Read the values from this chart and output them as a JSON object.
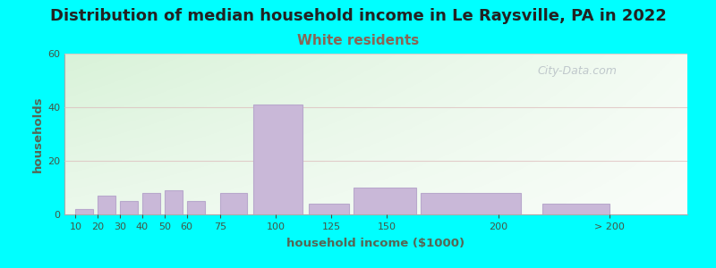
{
  "title": "Distribution of median household income in Le Raysville, PA in 2022",
  "subtitle": "White residents",
  "xlabel": "household income ($1000)",
  "ylabel": "households",
  "background_color": "#00FFFF",
  "bar_color": "#c9b8d8",
  "bar_edge_color": "#b8a8cc",
  "title_fontsize": 13,
  "subtitle_fontsize": 11,
  "subtitle_color": "#886655",
  "axis_label_color": "#556655",
  "tick_label_color": "#445544",
  "categories": [
    "10",
    "20",
    "30",
    "40",
    "50",
    "60",
    "75",
    "100",
    "125",
    "150",
    "200",
    "> 200"
  ],
  "values": [
    2,
    7,
    5,
    8,
    9,
    5,
    8,
    41,
    4,
    10,
    8,
    4
  ],
  "bar_left_edges": [
    10,
    20,
    30,
    40,
    50,
    60,
    75,
    90,
    115,
    135,
    165,
    220
  ],
  "bar_widths": [
    8,
    8,
    8,
    8,
    8,
    8,
    12,
    22,
    18,
    28,
    45,
    30
  ],
  "tick_positions": [
    10,
    20,
    30,
    40,
    50,
    60,
    75,
    100,
    125,
    150,
    200,
    250
  ],
  "xlim_left": 5,
  "xlim_right": 285,
  "ylim": [
    0,
    60
  ],
  "yticks": [
    0,
    20,
    40,
    60
  ],
  "watermark": "City-Data.com",
  "grid_color": "#ddbbbb",
  "grid_alpha": 0.7
}
